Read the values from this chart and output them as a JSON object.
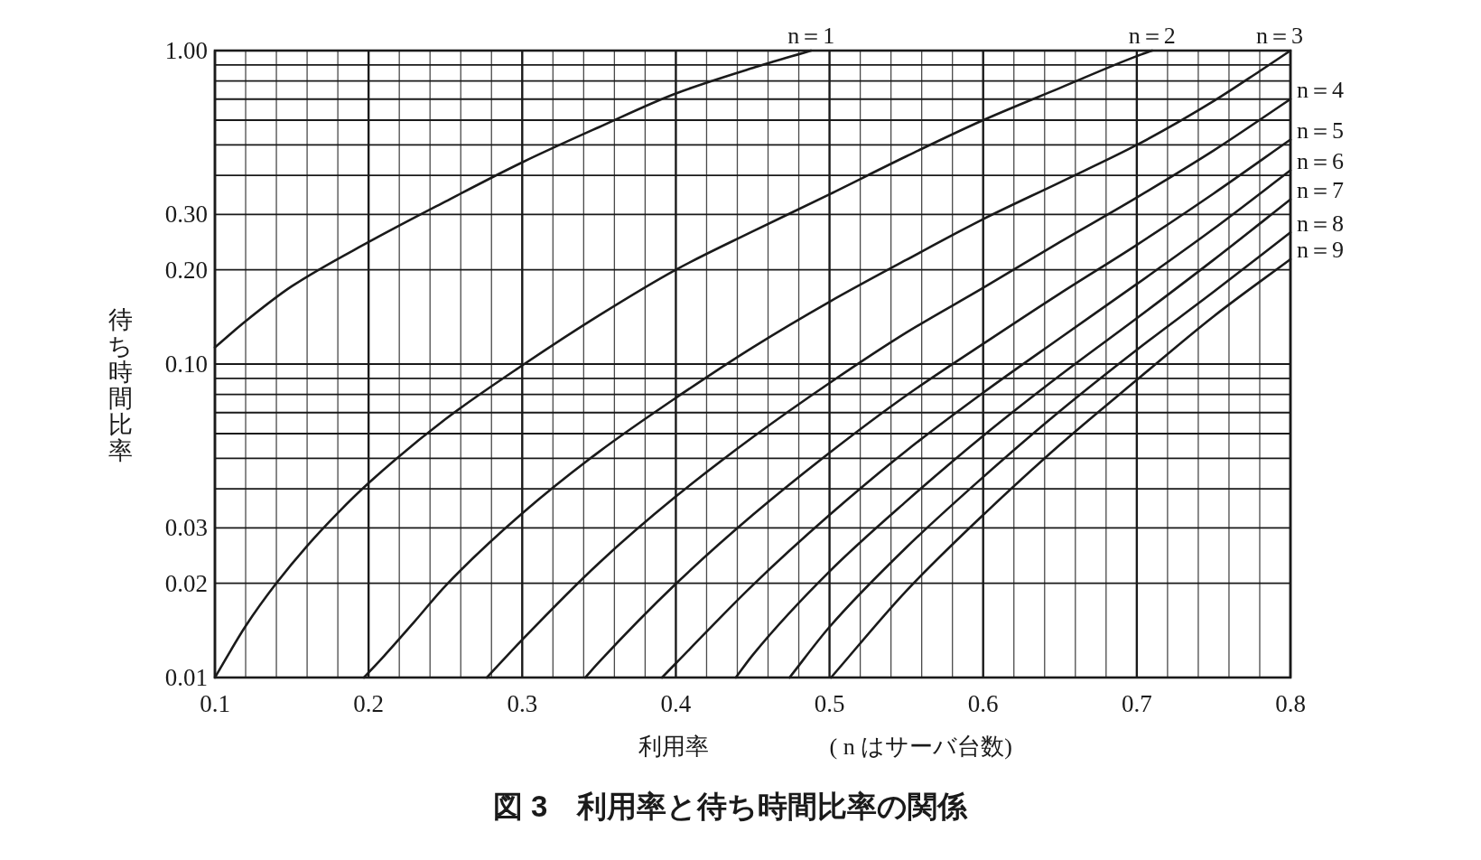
{
  "chart_data": {
    "type": "line",
    "title": "図 3　利用率と待ち時間比率の関係",
    "xlabel": "利用率",
    "ylabel": "待ち時間比率",
    "annotations": [
      "( n はサーバ台数)"
    ],
    "log": "y",
    "grid": true,
    "xlim": [
      0.1,
      0.8
    ],
    "ylim": [
      0.01,
      1
    ],
    "xticks": [
      0.1,
      {
        "value": 0.12,
        "label": null
      },
      {
        "value": 0.14,
        "label": null
      },
      {
        "value": 0.16,
        "label": null
      },
      {
        "value": 0.18,
        "label": null
      },
      0.2,
      {
        "value": 0.22,
        "label": null
      },
      {
        "value": 0.24,
        "label": null
      },
      {
        "value": 0.26,
        "label": null
      },
      {
        "value": 0.28,
        "label": null
      },
      0.3,
      {
        "value": 0.32,
        "label": null
      },
      {
        "value": 0.34,
        "label": null
      },
      {
        "value": 0.36,
        "label": null
      },
      {
        "value": 0.38,
        "label": null
      },
      0.4,
      {
        "value": 0.42,
        "label": null
      },
      {
        "value": 0.44,
        "label": null
      },
      {
        "value": 0.46,
        "label": null
      },
      {
        "value": 0.48,
        "label": null
      },
      0.5,
      {
        "value": 0.52,
        "label": null
      },
      {
        "value": 0.54,
        "label": null
      },
      {
        "value": 0.56,
        "label": null
      },
      {
        "value": 0.58,
        "label": null
      },
      0.6,
      {
        "value": 0.62,
        "label": null
      },
      {
        "value": 0.64,
        "label": null
      },
      {
        "value": 0.66,
        "label": null
      },
      {
        "value": 0.68,
        "label": null
      },
      0.7,
      {
        "value": 0.72,
        "label": null
      },
      {
        "value": 0.74,
        "label": null
      },
      {
        "value": 0.76,
        "label": null
      },
      {
        "value": 0.78,
        "label": null
      },
      0.8
    ],
    "yticks": [
      0.01,
      0.02,
      0.03,
      {
        "value": 0.04,
        "label": null
      },
      {
        "value": 0.05,
        "label": null
      },
      {
        "value": 0.06,
        "label": null
      },
      {
        "value": 0.07,
        "label": null
      },
      {
        "value": 0.08,
        "label": null
      },
      {
        "value": 0.09,
        "label": null
      },
      {
        "value": 0.1,
        "label": "0.10"
      },
      {
        "value": 0.2,
        "label": "0.20"
      },
      {
        "value": 0.3,
        "label": "0.30"
      },
      {
        "value": 0.4,
        "label": null
      },
      {
        "value": 0.5,
        "label": null
      },
      {
        "value": 0.6,
        "label": null
      },
      {
        "value": 0.7,
        "label": null
      },
      {
        "value": 0.8,
        "label": null
      },
      {
        "value": 0.9,
        "label": null
      },
      {
        "value": 1,
        "label": "1.00"
      }
    ],
    "series": [
      {
        "name": "n＝1",
        "color": "#1a1a1a",
        "x": [
          0.1,
          0.12,
          0.15,
          0.2,
          0.25,
          0.3,
          0.35,
          0.4,
          0.45,
          0.488
        ],
        "values": [
          0.113,
          0.137,
          0.177,
          0.245,
          0.33,
          0.44,
          0.57,
          0.73,
          0.88,
          1.0
        ]
      },
      {
        "name": "n＝2",
        "color": "#1a1a1a",
        "x": [
          0.1,
          0.12,
          0.14,
          0.16,
          0.18,
          0.2,
          0.25,
          0.3,
          0.35,
          0.4,
          0.45,
          0.5,
          0.55,
          0.6,
          0.65,
          0.7,
          0.71
        ],
        "values": [
          0.01,
          0.0146,
          0.02,
          0.0263,
          0.0335,
          0.0417,
          0.0667,
          0.099,
          0.143,
          0.2,
          0.265,
          0.348,
          0.46,
          0.6,
          0.76,
          0.96,
          1.0
        ]
      },
      {
        "name": "n＝3",
        "color": "#1a1a1a",
        "x": [
          0.197,
          0.21,
          0.23,
          0.25,
          0.3,
          0.35,
          0.4,
          0.45,
          0.5,
          0.55,
          0.6,
          0.65,
          0.7,
          0.75,
          0.78,
          0.8
        ],
        "values": [
          0.01,
          0.0117,
          0.0151,
          0.0196,
          0.0334,
          0.0525,
          0.078,
          0.113,
          0.158,
          0.215,
          0.29,
          0.38,
          0.5,
          0.69,
          0.86,
          1.0
        ]
      },
      {
        "name": "n＝4",
        "color": "#1a1a1a",
        "x": [
          0.277,
          0.3,
          0.35,
          0.4,
          0.45,
          0.5,
          0.55,
          0.6,
          0.65,
          0.7,
          0.75,
          0.8
        ],
        "values": [
          0.01,
          0.0132,
          0.0232,
          0.0378,
          0.0584,
          0.087,
          0.126,
          0.175,
          0.245,
          0.34,
          0.48,
          0.7
        ]
      },
      {
        "name": "n＝5",
        "color": "#1a1a1a",
        "x": [
          0.341,
          0.35,
          0.4,
          0.45,
          0.5,
          0.55,
          0.6,
          0.65,
          0.7,
          0.75,
          0.8
        ],
        "values": [
          0.01,
          0.0112,
          0.0199,
          0.033,
          0.0521,
          0.0794,
          0.116,
          0.168,
          0.24,
          0.35,
          0.52
        ]
      },
      {
        "name": "n＝6",
        "color": "#1a1a1a",
        "x": [
          0.391,
          0.4,
          0.45,
          0.5,
          0.55,
          0.6,
          0.65,
          0.7,
          0.75,
          0.8
        ],
        "values": [
          0.01,
          0.0111,
          0.0197,
          0.033,
          0.0529,
          0.081,
          0.121,
          0.18,
          0.27,
          0.415
        ]
      },
      {
        "name": "n＝7",
        "color": "#1a1a1a",
        "x": [
          0.439,
          0.45,
          0.5,
          0.55,
          0.6,
          0.65,
          0.7,
          0.75,
          0.8
        ],
        "values": [
          0.01,
          0.0118,
          0.0218,
          0.0365,
          0.059,
          0.092,
          0.14,
          0.215,
          0.335
        ]
      },
      {
        "name": "n＝8",
        "color": "#1a1a1a",
        "x": [
          0.474,
          0.5,
          0.55,
          0.6,
          0.65,
          0.7,
          0.75,
          0.8
        ],
        "values": [
          0.01,
          0.0145,
          0.026,
          0.0436,
          0.0708,
          0.111,
          0.17,
          0.263
        ]
      },
      {
        "name": "n＝9",
        "color": "#1a1a1a",
        "x": [
          0.501,
          0.55,
          0.6,
          0.65,
          0.7,
          0.75,
          0.8
        ],
        "values": [
          0.01,
          0.0189,
          0.033,
          0.0553,
          0.089,
          0.142,
          0.216
        ]
      }
    ]
  }
}
